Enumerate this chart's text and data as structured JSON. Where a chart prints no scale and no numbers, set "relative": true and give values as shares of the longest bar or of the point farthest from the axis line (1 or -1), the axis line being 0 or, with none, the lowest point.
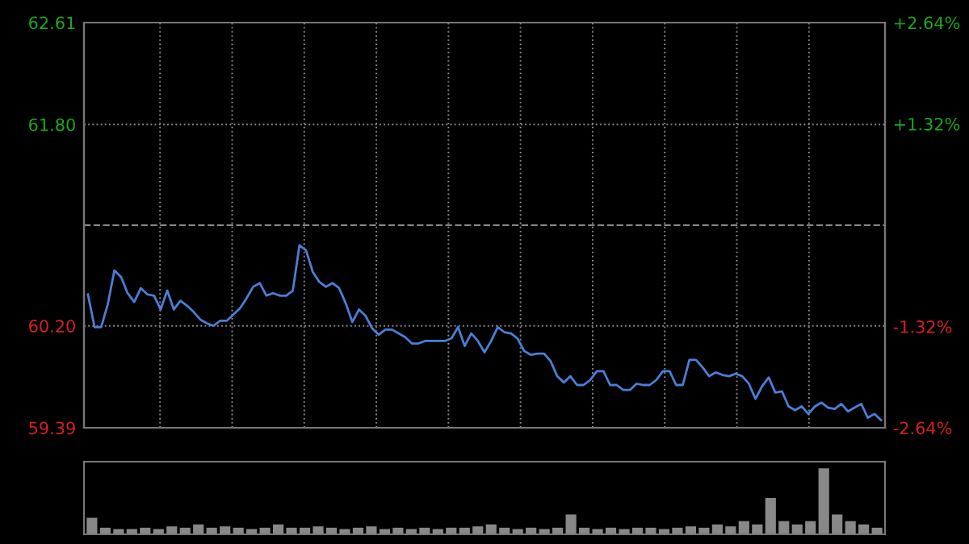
{
  "chart_data": [
    {
      "type": "line",
      "ylim": [
        59.39,
        62.61
      ],
      "y2lim": [
        -2.64,
        2.64
      ],
      "grid": true,
      "categories": [
        null,
        null,
        null,
        null,
        null,
        null,
        null,
        null,
        null,
        null,
        null,
        null,
        null,
        null,
        null,
        null,
        null,
        null,
        null,
        null,
        null,
        null,
        null,
        null,
        null,
        null,
        null,
        null,
        null,
        null,
        null,
        null,
        null,
        null,
        null,
        null,
        null,
        null,
        null,
        null,
        null,
        null,
        null,
        null,
        null,
        null,
        null,
        null,
        null,
        null,
        null,
        null,
        null,
        null,
        null,
        null,
        null,
        null,
        null,
        null,
        null,
        null,
        null,
        null,
        null,
        null,
        null,
        null,
        null,
        null,
        null,
        null,
        null,
        null,
        null,
        null,
        null,
        null,
        null,
        null,
        null,
        null,
        null,
        null,
        null,
        null,
        null,
        null,
        null,
        null,
        null,
        null,
        null,
        null,
        null,
        null,
        null,
        null,
        null,
        null,
        null,
        null,
        null,
        null,
        null,
        null,
        null,
        null,
        null,
        null,
        null,
        null,
        null,
        null,
        null,
        null,
        null,
        null,
        null,
        null,
        null
      ],
      "yticks": [
        62.61,
        {
          "value": 61.8,
          "label": "61.80"
        },
        {
          "value": 60.2,
          "label": "60.20"
        },
        59.39
      ],
      "y2ticks": [
        {
          "value": 2.64,
          "label": "+2.64%"
        },
        {
          "value": 1.32,
          "label": "+1.32%"
        },
        {
          "value": -1.32,
          "label": "-1.32%"
        },
        {
          "value": -2.64,
          "label": "-2.64%"
        }
      ],
      "ref_lines": [
        {
          "axis": "y",
          "value": 61.0,
          "line_style": "dashed",
          "color": "#888888"
        }
      ],
      "series": [
        {
          "color": "#4a7fd6",
          "values": [
            60.45,
            60.19,
            60.19,
            60.37,
            60.64,
            60.59,
            60.46,
            60.39,
            60.5,
            60.45,
            60.44,
            60.33,
            60.48,
            60.33,
            60.4,
            60.36,
            60.31,
            60.25,
            60.22,
            60.2,
            60.24,
            60.24,
            60.29,
            60.34,
            60.42,
            60.51,
            60.54,
            60.44,
            60.46,
            60.44,
            60.44,
            60.48,
            60.84,
            60.8,
            60.63,
            60.55,
            60.51,
            60.54,
            60.5,
            60.38,
            60.23,
            60.33,
            60.28,
            60.18,
            60.13,
            60.17,
            60.17,
            60.14,
            60.11,
            60.06,
            60.06,
            60.08,
            60.08,
            60.08,
            60.08,
            60.1,
            60.19,
            60.04,
            60.14,
            60.08,
            59.99,
            60.08,
            60.19,
            60.15,
            60.14,
            60.1,
            60.0,
            59.97,
            59.98,
            59.98,
            59.92,
            59.8,
            59.75,
            59.8,
            59.73,
            59.73,
            59.77,
            59.84,
            59.84,
            59.73,
            59.73,
            59.69,
            59.69,
            59.74,
            59.73,
            59.73,
            59.77,
            59.84,
            59.84,
            59.73,
            59.73,
            59.93,
            59.93,
            59.87,
            59.8,
            59.83,
            59.81,
            59.8,
            59.82,
            59.8,
            59.74,
            59.62,
            59.72,
            59.79,
            59.67,
            59.68,
            59.56,
            59.53,
            59.56,
            59.5,
            59.56,
            59.59,
            59.55,
            59.54,
            59.58,
            59.52,
            59.55,
            59.58,
            59.47,
            59.5,
            59.45
          ]
        }
      ]
    },
    {
      "type": "bar",
      "relative": true,
      "categories": [
        null,
        null,
        null,
        null,
        null,
        null,
        null,
        null,
        null,
        null,
        null,
        null,
        null,
        null,
        null,
        null,
        null,
        null,
        null,
        null,
        null,
        null,
        null,
        null,
        null,
        null,
        null,
        null,
        null,
        null,
        null,
        null,
        null,
        null,
        null,
        null,
        null,
        null,
        null,
        null,
        null,
        null,
        null,
        null,
        null,
        null,
        null,
        null,
        null,
        null,
        null,
        null,
        null,
        null,
        null,
        null,
        null,
        null,
        null,
        null
      ],
      "series": [
        {
          "color": "#888888",
          "values": [
            0.25,
            0.1,
            0.08,
            0.08,
            0.1,
            0.08,
            0.12,
            0.1,
            0.15,
            0.1,
            0.12,
            0.1,
            0.08,
            0.1,
            0.15,
            0.1,
            0.1,
            0.12,
            0.1,
            0.08,
            0.1,
            0.12,
            0.08,
            0.1,
            0.08,
            0.1,
            0.08,
            0.1,
            0.1,
            0.12,
            0.15,
            0.1,
            0.08,
            0.1,
            0.08,
            0.1,
            0.3,
            0.1,
            0.08,
            0.1,
            0.08,
            0.1,
            0.1,
            0.08,
            0.1,
            0.12,
            0.1,
            0.15,
            0.12,
            0.2,
            0.15,
            0.55,
            0.2,
            0.15,
            0.2,
            1.0,
            0.3,
            0.2,
            0.15,
            0.1
          ]
        }
      ]
    }
  ]
}
